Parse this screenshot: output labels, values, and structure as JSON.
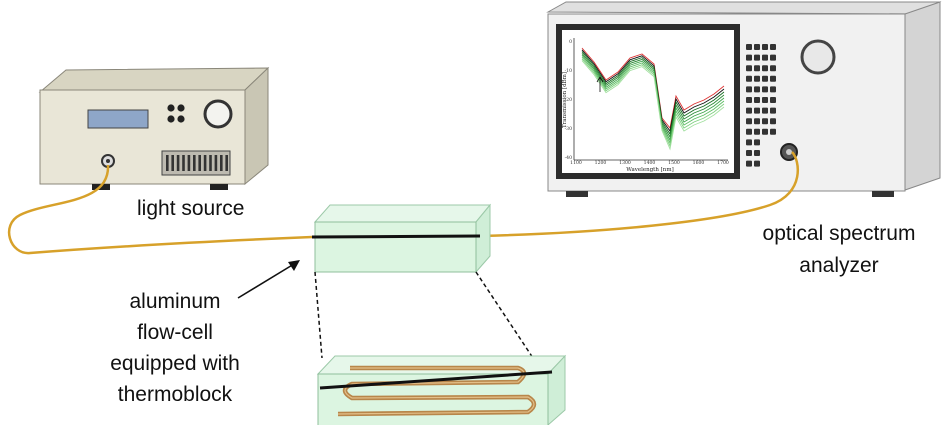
{
  "labels": {
    "light_source": "light source",
    "osa_line1": "optical spectrum",
    "osa_line2": "analyzer",
    "flowcell_lines": [
      "aluminum",
      "flow-cell",
      "equipped with",
      "thermoblock"
    ]
  },
  "screen_plot": {
    "xlabel": "Wavelength [nm]",
    "ylabel": "Transmission [dBm]",
    "x_ticks": [
      "1100",
      "1200",
      "1300",
      "1400",
      "1500",
      "1600",
      "1700"
    ],
    "y_ticks": [
      "0",
      "-10",
      "-20",
      "-30",
      "-40"
    ]
  },
  "colors": {
    "fiber": "#d7a12a",
    "fiber_core": "#111111",
    "cell_fill": "#d6f3dc",
    "cell_edge": "#8fbf9c",
    "heating_tube": "#b8864a",
    "device_body": "#e9e6d7",
    "analyzer_body": "#f1f1f1"
  }
}
